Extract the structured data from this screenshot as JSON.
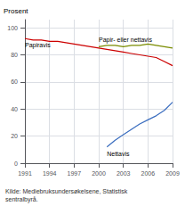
{
  "chart_data": {
    "type": "line",
    "ylabel": "Prosent",
    "series": [
      {
        "name": "Papiravis",
        "color": "#cc0000",
        "x": [
          1991,
          1992,
          1993,
          1994,
          1995,
          1996,
          1997,
          1998,
          1999,
          2000,
          2001,
          2002,
          2003,
          2004,
          2005,
          2006,
          2007,
          2008,
          2009
        ],
        "values": [
          92,
          91,
          91,
          90,
          90,
          89,
          88,
          87,
          86,
          85,
          84,
          83,
          82,
          81,
          80,
          79,
          78,
          75,
          72
        ]
      },
      {
        "name": "Papir- eller nettavis",
        "color": "#7a8c00",
        "x": [
          2000,
          2001,
          2002,
          2003,
          2004,
          2005,
          2006,
          2007,
          2008,
          2009
        ],
        "values": [
          86,
          87,
          87,
          86,
          87,
          87,
          88,
          87,
          86,
          85
        ]
      },
      {
        "name": "Nettavis",
        "color": "#3a6dbf",
        "x": [
          2001,
          2002,
          2003,
          2004,
          2005,
          2006,
          2007,
          2008,
          2009
        ],
        "values": [
          12,
          17,
          21,
          25,
          29,
          32,
          35,
          39,
          45
        ]
      }
    ],
    "xlim": [
      1991,
      2009
    ],
    "xticks": [
      1991,
      1994,
      1997,
      2000,
      2003,
      2006,
      2009
    ],
    "ylim": [
      0,
      106
    ],
    "yticks": [
      0,
      20,
      40,
      60,
      80,
      100
    ],
    "grid": true,
    "annotations": [
      "Kilde: Mediebruksundersøkelsene, Statistisk\nsentralbyrå."
    ]
  }
}
